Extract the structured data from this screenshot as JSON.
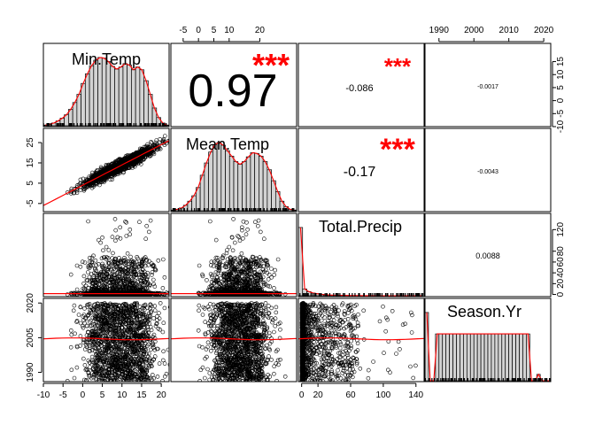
{
  "chart_data": {
    "type": "scatter-matrix",
    "variables": [
      "Min.Temp",
      "Mean.Temp",
      "Total.Precip",
      "Season.Yr"
    ],
    "correlations": [
      {
        "row": 0,
        "col": 1,
        "value": "0.97",
        "stars": "***"
      },
      {
        "row": 0,
        "col": 2,
        "value": "-0.086",
        "stars": "***"
      },
      {
        "row": 0,
        "col": 3,
        "value": "-0.0017",
        "stars": ""
      },
      {
        "row": 1,
        "col": 2,
        "value": "-0.17",
        "stars": "***"
      },
      {
        "row": 1,
        "col": 3,
        "value": "-0.0043",
        "stars": ""
      },
      {
        "row": 2,
        "col": 3,
        "value": "0.0088",
        "stars": ""
      }
    ],
    "axis_ranges": {
      "Min.Temp": [
        -10,
        22
      ],
      "Mean.Temp": [
        -9,
        32
      ],
      "Total.Precip": [
        -4,
        150
      ],
      "Season.Yr": [
        1986,
        2022
      ]
    },
    "axes": {
      "bottom": [
        {
          "col": 0,
          "ticks": [
            -10,
            -5,
            0,
            5,
            10,
            15,
            20
          ]
        },
        {
          "col": 2,
          "ticks": [
            0,
            20,
            60,
            100,
            140
          ]
        }
      ],
      "top": [
        {
          "col": 1,
          "ticks": [
            -5,
            0,
            5,
            10,
            20
          ]
        },
        {
          "col": 3,
          "ticks": [
            1990,
            2000,
            2010,
            2020
          ]
        }
      ],
      "left": [
        {
          "row": 1,
          "ticks": [
            25,
            15,
            5,
            -5
          ]
        },
        {
          "row": 3,
          "ticks": [
            2020,
            2005,
            1990
          ]
        }
      ],
      "right": [
        {
          "row": 0,
          "ticks": [
            15,
            10,
            5,
            0,
            -5,
            -10
          ]
        },
        {
          "row": 2,
          "ticks": [
            120,
            80,
            60,
            40,
            20,
            0
          ]
        }
      ]
    },
    "histograms": {
      "Min.Temp": [
        1,
        2,
        4,
        7,
        11,
        16,
        24,
        34,
        46,
        62,
        76,
        88,
        96,
        100,
        99,
        94,
        87,
        83,
        86,
        91,
        89,
        82,
        86,
        82,
        66,
        46,
        26,
        12,
        4,
        1
      ],
      "Mean.Temp": [
        1,
        2,
        4,
        8,
        14,
        22,
        34,
        52,
        70,
        86,
        97,
        100,
        96,
        88,
        80,
        72,
        68,
        72,
        79,
        85,
        84,
        80,
        72,
        60,
        44,
        28,
        14,
        6,
        2,
        1
      ],
      "Total.Precip": [
        100,
        10,
        6,
        4,
        3,
        2,
        1.5,
        1,
        0.8,
        0.6,
        0.5,
        0.4,
        0.3,
        0.2,
        0.2,
        0.1,
        0.1,
        0.1,
        0,
        0,
        0,
        0,
        0,
        0,
        0,
        0,
        0,
        0,
        0.1,
        0
      ],
      "Season.Yr": [
        86,
        0,
        0,
        59,
        59,
        59,
        59,
        59,
        59,
        59,
        59,
        59,
        59,
        59,
        59,
        59,
        59,
        59,
        59,
        59,
        59,
        59,
        59,
        59,
        59,
        59,
        59,
        59,
        59,
        59,
        0,
        0,
        8,
        0,
        0,
        0
      ]
    }
  }
}
